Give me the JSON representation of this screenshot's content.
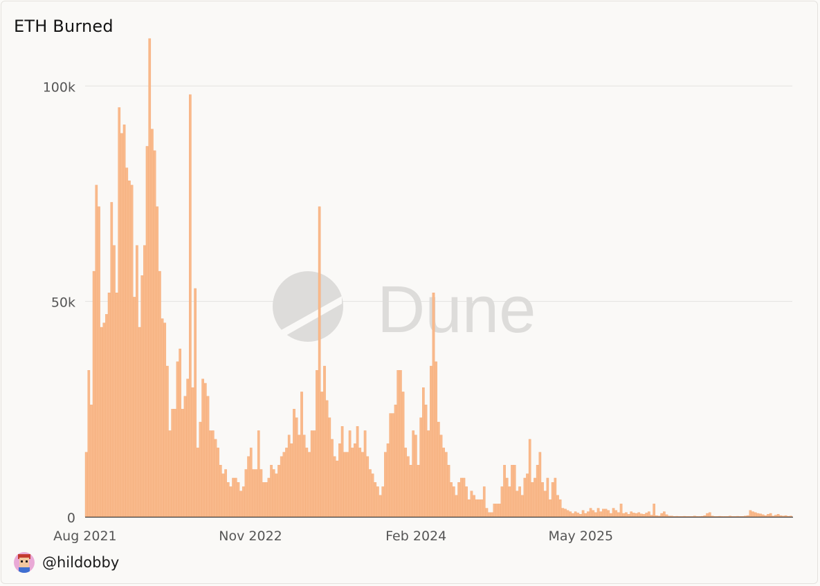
{
  "card": {
    "title": "ETH Burned",
    "author": "@hildobby",
    "watermark": "Dune"
  },
  "colors": {
    "bar": "#f9b98b",
    "bar_edge": "#f4a46b",
    "grid": "#e3e2df",
    "axis_text": "#555555",
    "watermark": "#dddcda"
  },
  "chart_data": {
    "type": "bar",
    "title": "ETH Burned",
    "xlabel": "",
    "ylabel": "",
    "ylim": [
      0,
      110000
    ],
    "y_ticks": [
      0,
      50000,
      100000
    ],
    "y_tick_labels": [
      "0",
      "50k",
      "100k"
    ],
    "x_tick_labels": [
      "Aug 2021",
      "Nov 2022",
      "Feb 2024",
      "May 2025"
    ],
    "x_start": "2021-08-05",
    "x_ticks": [
      "2021-08-01",
      "2022-11-01",
      "2024-02-01",
      "2025-05-01"
    ],
    "bar_period": "week",
    "grid": true,
    "values": [
      15000,
      34000,
      26000,
      57000,
      77000,
      72000,
      44000,
      45000,
      47000,
      52000,
      73000,
      63000,
      52000,
      95000,
      89000,
      91000,
      81000,
      78000,
      77000,
      51000,
      63000,
      44000,
      56000,
      63000,
      86000,
      111000,
      90000,
      85000,
      72000,
      57000,
      46000,
      45000,
      35000,
      20000,
      25000,
      25000,
      36000,
      39000,
      25000,
      28000,
      32000,
      98000,
      30000,
      53000,
      16000,
      22000,
      32000,
      31000,
      28000,
      20000,
      20000,
      18000,
      16000,
      12000,
      10000,
      11000,
      8000,
      7000,
      9000,
      9000,
      8000,
      6000,
      7000,
      11000,
      14000,
      16000,
      11000,
      11000,
      20000,
      11000,
      8000,
      8000,
      9000,
      12000,
      11000,
      10000,
      12000,
      14000,
      15000,
      16000,
      19000,
      17000,
      25000,
      23000,
      19000,
      29000,
      19000,
      16000,
      15000,
      20000,
      20000,
      34000,
      72000,
      29000,
      35000,
      27000,
      23000,
      18000,
      14000,
      13000,
      17000,
      21000,
      15000,
      15000,
      20000,
      16000,
      17000,
      21000,
      16000,
      15000,
      20000,
      14000,
      11000,
      10000,
      8000,
      7000,
      5000,
      7000,
      15000,
      17000,
      24000,
      24000,
      26000,
      34000,
      34000,
      29000,
      16000,
      14000,
      12000,
      20000,
      19000,
      12000,
      23000,
      30000,
      26000,
      20000,
      35000,
      52000,
      36000,
      22000,
      19000,
      16000,
      15000,
      12000,
      8000,
      7000,
      5000,
      8000,
      9000,
      9000,
      7000,
      4000,
      6000,
      5000,
      4000,
      4000,
      4000,
      7000,
      2000,
      1000,
      1000,
      3000,
      3000,
      3000,
      7000,
      12000,
      9000,
      7000,
      12000,
      12000,
      6000,
      7000,
      5000,
      9000,
      10000,
      18000,
      8000,
      9000,
      12000,
      15000,
      8000,
      6000,
      9000,
      4000,
      8000,
      9000,
      5000,
      4000,
      2000,
      1800,
      1500,
      1200,
      800,
      1200,
      900,
      600,
      1500,
      800,
      1200,
      2000,
      1500,
      1000,
      2000,
      1200,
      1800,
      1800,
      1500,
      800,
      2000,
      1500,
      1000,
      3000,
      800,
      1000,
      600,
      1200,
      900,
      800,
      1000,
      700,
      600,
      900,
      1200,
      400,
      3000,
      300,
      200,
      800,
      1200,
      500,
      200,
      200,
      100,
      150,
      100,
      100,
      150,
      100,
      100,
      100,
      200,
      100,
      100,
      150,
      300,
      800,
      1000,
      200,
      100,
      100,
      150,
      100,
      100,
      100,
      200,
      100,
      100,
      150,
      100,
      100,
      200,
      300,
      1500,
      1200,
      1000,
      800,
      700,
      500,
      300,
      600,
      800,
      200,
      400,
      600,
      300,
      200,
      300,
      150,
      200
    ]
  }
}
